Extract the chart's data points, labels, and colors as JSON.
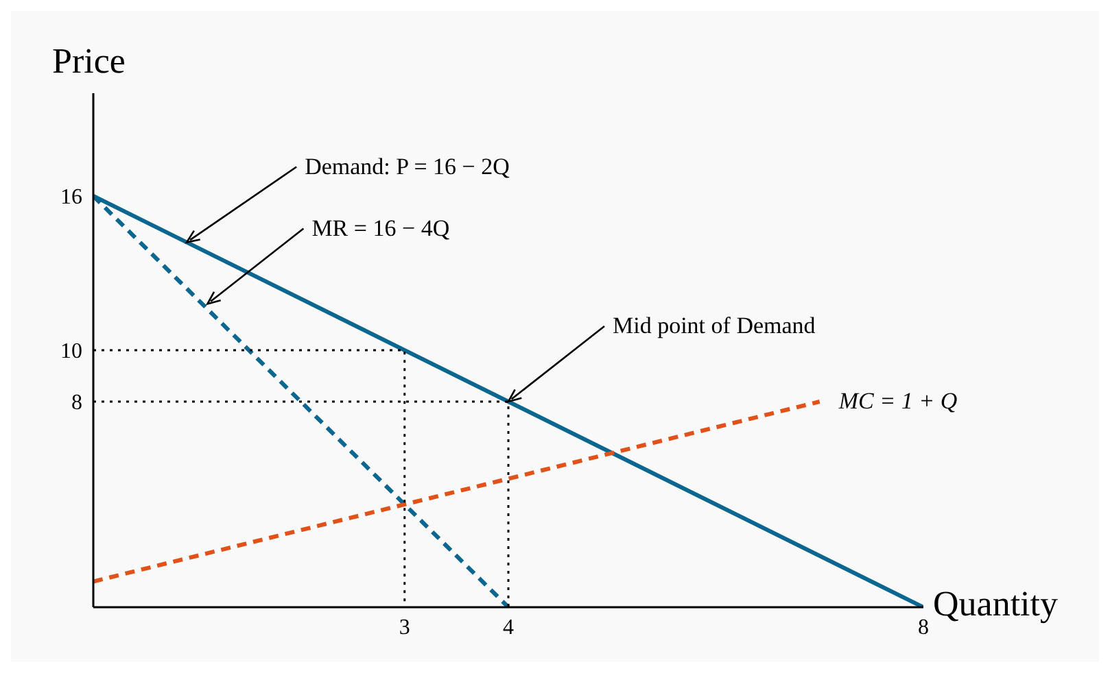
{
  "chart_data": {
    "type": "line",
    "xlabel": "Quantity",
    "ylabel": "Price",
    "xlim": [
      0,
      8
    ],
    "ylim": [
      0,
      20
    ],
    "xticks": [
      3,
      4,
      8
    ],
    "yticks": [
      8,
      10,
      16
    ],
    "grid": false,
    "legend": false,
    "marker": "none",
    "series": [
      {
        "color": "#0b6690",
        "x": [
          0,
          8
        ],
        "values": [
          16,
          0
        ],
        "line_style": "solid"
      },
      {
        "color": "#0b6690",
        "x": [
          0,
          4
        ],
        "values": [
          16,
          0
        ],
        "line_style": "dashed"
      },
      {
        "name": "MC = 1 + Q",
        "color": "#e0521a",
        "x": [
          0,
          7
        ],
        "values": [
          1,
          8
        ],
        "line_style": "dashed"
      },
      {
        "color": "#000000",
        "x": [
          0,
          3,
          3
        ],
        "values": [
          10,
          10,
          0
        ],
        "line_style": "dotted"
      },
      {
        "color": "#000000",
        "x": [
          0,
          4,
          4
        ],
        "values": [
          8,
          8,
          0
        ],
        "line_style": "dotted"
      }
    ],
    "annotations": [
      {
        "text": "Demand: P = 16 − 2Q",
        "x": 0.9,
        "y": 14.2
      },
      {
        "text": "MR = 16 − 4Q",
        "x": 1.1,
        "y": 11.8
      },
      {
        "text": "Mid point of Demand",
        "x": 4,
        "y": 8
      }
    ]
  }
}
